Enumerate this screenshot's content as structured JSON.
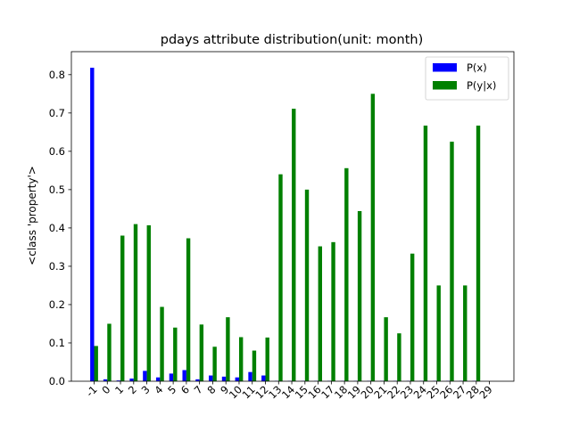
{
  "chart_data": {
    "type": "bar",
    "title": "pdays attribute distribution(unit: month)",
    "xlabel": "",
    "ylabel": "<class 'property'>",
    "categories": [
      "-1",
      "0",
      "1",
      "2",
      "3",
      "4",
      "5",
      "6",
      "7",
      "8",
      "9",
      "10",
      "11",
      "12",
      "13",
      "14",
      "15",
      "16",
      "17",
      "18",
      "19",
      "20",
      "21",
      "22",
      "23",
      "24",
      "25",
      "26",
      "27",
      "28",
      "29"
    ],
    "series": [
      {
        "name": "P(x)",
        "color": "#0000ff",
        "values": [
          0.818,
          0.005,
          0.002,
          0.007,
          0.027,
          0.01,
          0.02,
          0.029,
          0.005,
          0.015,
          0.012,
          0.01,
          0.024,
          0.015,
          0.001,
          0.001,
          0.001,
          0.001,
          0.001,
          0.001,
          0.001,
          0.001,
          0.001,
          0.001,
          0.001,
          0.001,
          0.001,
          0.001,
          0.001,
          0.001,
          0.0
        ]
      },
      {
        "name": "P(y|x)",
        "color": "#008000",
        "values": [
          0.092,
          0.15,
          0.38,
          0.41,
          0.407,
          0.194,
          0.14,
          0.373,
          0.148,
          0.09,
          0.167,
          0.115,
          0.08,
          0.114,
          0.54,
          0.711,
          0.5,
          0.352,
          0.363,
          0.556,
          0.444,
          0.75,
          0.167,
          0.125,
          0.333,
          0.667,
          0.25,
          0.625,
          0.25,
          0.667,
          0.0
        ]
      }
    ],
    "ylim": [
      0,
      0.86
    ],
    "yticks": [
      "0.0",
      "0.1",
      "0.2",
      "0.3",
      "0.4",
      "0.5",
      "0.6",
      "0.7",
      "0.8"
    ],
    "legend": "top-right",
    "grid": false
  }
}
